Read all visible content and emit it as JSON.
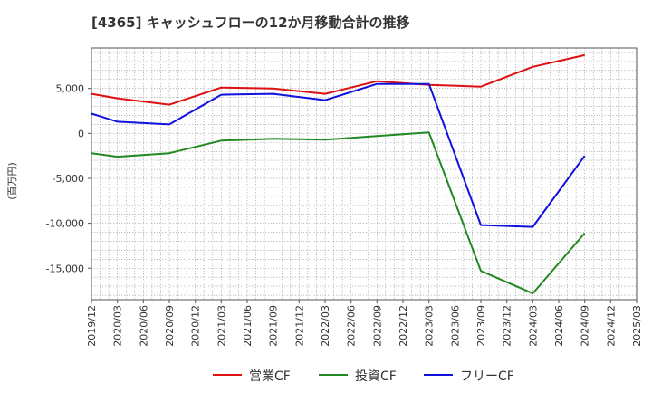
{
  "chart_data": {
    "type": "line",
    "title": "[4365]  キャッシュフローの12か月移動合計の推移",
    "ylabel": "(百万円)",
    "xlabel": "",
    "ylim": [
      -18500,
      9500
    ],
    "yticks": [
      5000,
      0,
      -5000,
      -10000,
      -15000
    ],
    "ytick_labels": [
      "5,000",
      "0",
      "-5,000",
      "-10,000",
      "-15,000"
    ],
    "x_tick_labels": [
      "2019/12",
      "2020/03",
      "2020/06",
      "2020/09",
      "2020/12",
      "2021/03",
      "2021/06",
      "2021/09",
      "2021/12",
      "2022/03",
      "2022/06",
      "2022/09",
      "2022/12",
      "2023/03",
      "2023/06",
      "2023/09",
      "2023/12",
      "2024/03",
      "2024/06",
      "2024/09",
      "2024/12",
      "2025/03"
    ],
    "grid": true,
    "legend_position": "bottom",
    "series": [
      {
        "name": "営業CF",
        "color": "#dd1111",
        "points": [
          [
            0,
            4400
          ],
          [
            1,
            3900
          ],
          [
            3,
            3200
          ],
          [
            5,
            5100
          ],
          [
            7,
            5000
          ],
          [
            9,
            4400
          ],
          [
            11,
            5800
          ],
          [
            13,
            5400
          ],
          [
            15,
            5200
          ],
          [
            17,
            7400
          ],
          [
            19,
            8700
          ]
        ]
      },
      {
        "name": "投資CF",
        "color": "#228822",
        "points": [
          [
            0,
            -2200
          ],
          [
            1,
            -2600
          ],
          [
            3,
            -2200
          ],
          [
            5,
            -800
          ],
          [
            7,
            -600
          ],
          [
            9,
            -700
          ],
          [
            11,
            -300
          ],
          [
            13,
            100
          ],
          [
            15,
            -15300
          ],
          [
            17,
            -17800
          ],
          [
            19,
            -11100
          ]
        ]
      },
      {
        "name": "フリーCF",
        "color": "#1111dd",
        "points": [
          [
            0,
            2200
          ],
          [
            1,
            1300
          ],
          [
            3,
            1000
          ],
          [
            5,
            4300
          ],
          [
            7,
            4400
          ],
          [
            9,
            3700
          ],
          [
            11,
            5500
          ],
          [
            13,
            5500
          ],
          [
            15,
            -10200
          ],
          [
            17,
            -10400
          ],
          [
            19,
            -2500
          ]
        ]
      }
    ]
  }
}
